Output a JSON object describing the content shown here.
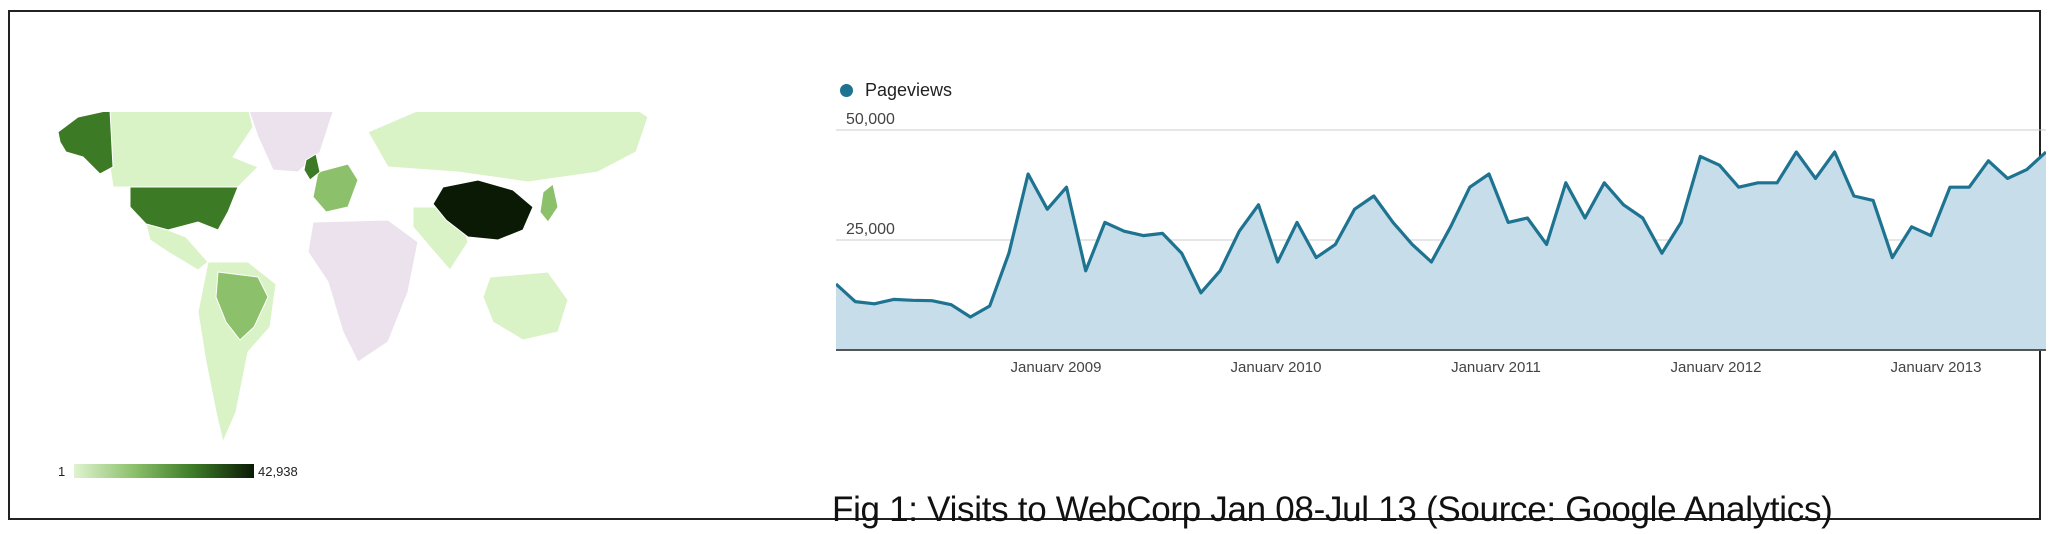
{
  "caption": "Fig 1: Visits to WebCorp Jan 08-Jul 13 (Source: Google Analytics)",
  "map": {
    "scale_min": "1",
    "scale_max": "42,938",
    "colors": {
      "none": "#ece2ee",
      "low": "#d9f2c6",
      "mid": "#8cc06b",
      "high": "#3c7a26",
      "top": "#0a1a05"
    },
    "regions": [
      {
        "name": "Alaska",
        "level": "high"
      },
      {
        "name": "Canada",
        "level": "low"
      },
      {
        "name": "United States",
        "level": "high"
      },
      {
        "name": "Mexico",
        "level": "low"
      },
      {
        "name": "Greenland",
        "level": "none"
      },
      {
        "name": "South America",
        "level": "low"
      },
      {
        "name": "Brazil",
        "level": "mid"
      },
      {
        "name": "United Kingdom",
        "level": "high"
      },
      {
        "name": "Western Europe",
        "level": "mid"
      },
      {
        "name": "Russia",
        "level": "low"
      },
      {
        "name": "Africa",
        "level": "none"
      },
      {
        "name": "China",
        "level": "top"
      },
      {
        "name": "Japan",
        "level": "mid"
      },
      {
        "name": "India",
        "level": "low"
      },
      {
        "name": "Australia",
        "level": "low"
      }
    ]
  },
  "chart_data": {
    "type": "area",
    "series": [
      {
        "name": "Pageviews",
        "color": "#1e7391",
        "values": [
          15000,
          11000,
          10500,
          11500,
          11300,
          11200,
          10300,
          7500,
          10000,
          22000,
          40000,
          32000,
          37000,
          18000,
          29000,
          27000,
          26000,
          26500,
          22000,
          13000,
          18000,
          27000,
          33000,
          20000,
          29000,
          21000,
          24000,
          32000,
          35000,
          29000,
          24000,
          20000,
          28000,
          37000,
          40000,
          29000,
          30000,
          24000,
          38000,
          30000,
          38000,
          33000,
          30000,
          22000,
          29000,
          44000,
          42000,
          37000,
          38000,
          38000,
          45000,
          39000,
          45000,
          35000,
          34000,
          21000,
          28000,
          26000,
          37000,
          37000,
          43000,
          39000,
          41000,
          45000
        ]
      }
    ],
    "x_start": "2008-01",
    "x_end": "2013-07",
    "x_ticks": [
      {
        "label": "January 2009",
        "date": "2009-01"
      },
      {
        "label": "January 2010",
        "date": "2010-01"
      },
      {
        "label": "January 2011",
        "date": "2011-01"
      },
      {
        "label": "January 2012",
        "date": "2012-01"
      },
      {
        "label": "January 2013",
        "date": "2013-01"
      }
    ],
    "y_ticks": [
      {
        "label": "50,000",
        "value": 50000
      },
      {
        "label": "25,000",
        "value": 25000
      }
    ],
    "ylim": [
      0,
      50000
    ],
    "fill_color": "#c7dde9",
    "grid": true,
    "legend": "top-left"
  }
}
